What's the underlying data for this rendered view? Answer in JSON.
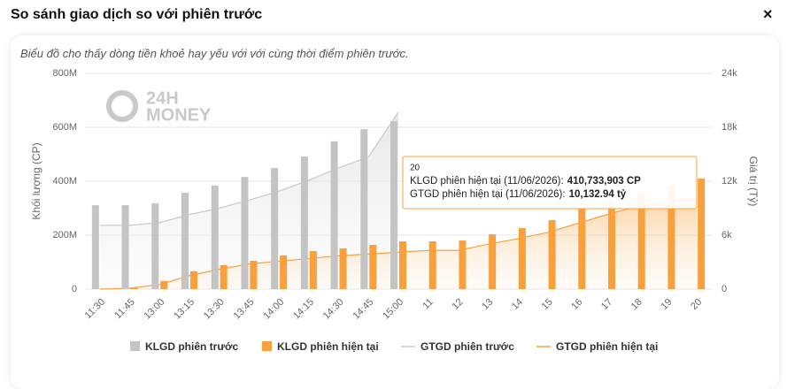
{
  "header": {
    "title": "So sánh giao dịch so với phiên trước",
    "close": "×"
  },
  "chart_data": {
    "type": "bar",
    "subtitle": "Biểu đồ cho thấy dòng tiền khoẻ hay yếu với với cùng thời điểm phiên trước.",
    "logo": [
      "24H",
      "MONEY"
    ],
    "y_label": "Khối lượng (CP)",
    "y2_label": "Giá trị (Tỷ)",
    "categories": [
      "11:30",
      "11:45",
      "13:00",
      "13:15",
      "13:30",
      "13:45",
      "14:00",
      "14:15",
      "14:30",
      "14:45",
      "15:00",
      "11",
      "12",
      "13",
      "14",
      "15",
      "16",
      "17",
      "18",
      "19",
      "20"
    ],
    "ylim": [
      0,
      800000000
    ],
    "yticks": [
      {
        "value": 0,
        "label": "0"
      },
      {
        "value": 200000000,
        "label": "200M"
      },
      {
        "value": 400000000,
        "label": "400M"
      },
      {
        "value": 600000000,
        "label": "600M"
      },
      {
        "value": 800000000,
        "label": "800M"
      }
    ],
    "y2lim": [
      0,
      24000
    ],
    "y2ticks": [
      {
        "value": 0,
        "label": "0"
      },
      {
        "value": 6000,
        "label": "6k"
      },
      {
        "value": 12000,
        "label": "12k"
      },
      {
        "value": 18000,
        "label": "18k"
      },
      {
        "value": 24000,
        "label": "24k"
      }
    ],
    "grid": true,
    "series": [
      {
        "name": "KLGD phiên trước",
        "type": "bar",
        "color": "#c4c4c4",
        "values": [
          311000000,
          311000000,
          318000000,
          357000000,
          384000000,
          416000000,
          449000000,
          492000000,
          548000000,
          593000000,
          623000000,
          null,
          null,
          null,
          null,
          null,
          null,
          null,
          null,
          null,
          null
        ]
      },
      {
        "name": "KLGD phiên hiện tại",
        "type": "bar",
        "color": "#f7a03c",
        "values": [
          0,
          6000000,
          30000000,
          66000000,
          89000000,
          105000000,
          125000000,
          141000000,
          151000000,
          164000000,
          177000000,
          177000000,
          180000000,
          203000000,
          226000000,
          256000000,
          298000000,
          328000000,
          357000000,
          384000000,
          410733903
        ]
      },
      {
        "name": "GTGD phiên trước",
        "type": "line",
        "axis": "y2",
        "color": "#c8c8c8",
        "values": [
          7100,
          7100,
          7400,
          8300,
          9000,
          9900,
          10900,
          12100,
          13500,
          14700,
          19700,
          null,
          null,
          null,
          null,
          null,
          null,
          null,
          null,
          null,
          null
        ]
      },
      {
        "name": "GTGD phiên hiện tại",
        "type": "line",
        "axis": "y2",
        "color": "#f7a03c",
        "values": [
          0,
          100,
          500,
          1500,
          2200,
          2800,
          3100,
          3400,
          3700,
          3900,
          4100,
          4300,
          4300,
          5000,
          5600,
          6300,
          7300,
          8300,
          9200,
          9700,
          10132.94
        ]
      }
    ],
    "tooltip": {
      "title": "20",
      "rows": [
        {
          "label": "KLGD phiên hiện tại (11/06/2026):",
          "value": "410,733,903 CP"
        },
        {
          "label": "GTGD phiên hiện tại (11/06/2026):",
          "value": "10,132.94 tỷ"
        }
      ]
    }
  }
}
